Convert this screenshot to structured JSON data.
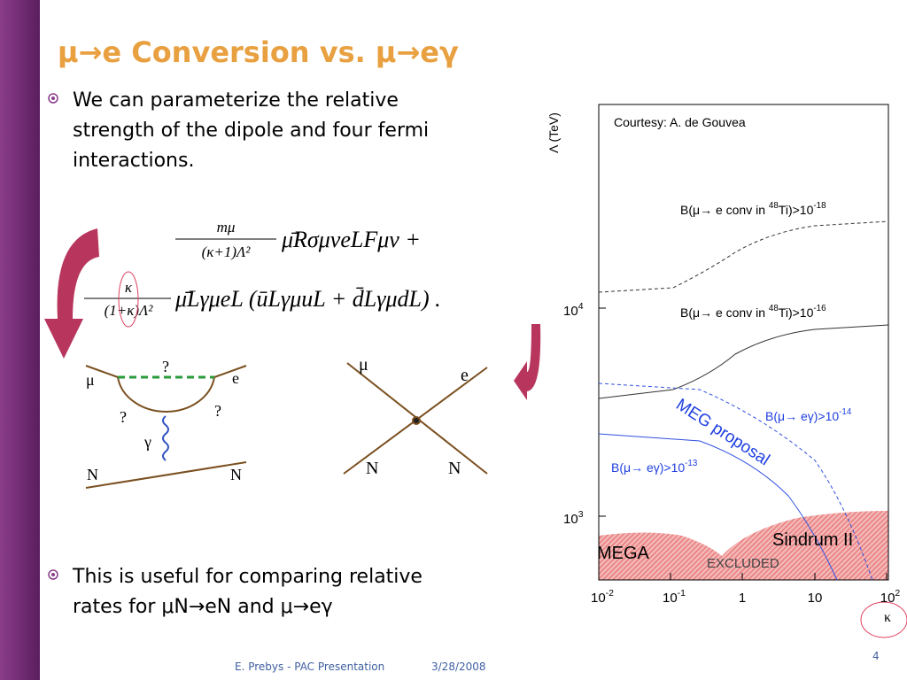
{
  "title": "μ→e Conversion vs. μ→eγ",
  "bullets": [
    {
      "lines": [
        "We can parameterize the relative",
        "strength of the dipole and four fermi",
        "interactions."
      ]
    },
    {
      "lines": [
        "This is useful for comparing relative",
        "rates for μN→eN and μ→eγ"
      ]
    }
  ],
  "equation": {
    "line1": {
      "num": "mμ",
      "den": "(κ+1)Λ²",
      "rest": "μ̄RσμνeLFμν +"
    },
    "line2": {
      "num": "κ",
      "den": "(1+κ)Λ²",
      "rest": "μ̄LγμeL (ūLγμuL + d̄LγμdL) ."
    }
  },
  "diagram_left": {
    "labels": [
      "?",
      "μ",
      "e",
      "?",
      "?",
      "γ",
      "N",
      "N"
    ]
  },
  "diagram_right": {
    "labels": [
      "μ",
      "e",
      "N",
      "N"
    ]
  },
  "plot": {
    "y_label": "Λ (TeV)",
    "x_label": "κ",
    "courtesy": "Courtesy: A. de Gouvea",
    "y_ticks": [
      [
        "10",
        "4"
      ],
      [
        "10",
        "3"
      ]
    ],
    "x_ticks": [
      [
        "10",
        "-2"
      ],
      [
        "10",
        "-1"
      ],
      [
        "1"
      ],
      [
        "10"
      ],
      [
        "10",
        "2"
      ]
    ],
    "curve_labels": [
      [
        "B(μ→ e conv in ",
        "48",
        "Ti)>10",
        "-18"
      ],
      [
        "B(μ→ e conv in ",
        "48",
        "Ti)>10",
        "-16"
      ],
      [
        "B(μ→ eγ)>10",
        "-14"
      ],
      [
        "B(μ→ eγ)>10",
        "-13"
      ]
    ],
    "meg": "MEG proposal",
    "sindrum": "Sindrum II",
    "mega": "MEGA",
    "excluded": "EXCLUDED"
  },
  "footer": {
    "author": "E. Prebys - PAC Presentation",
    "date": "3/28/2008",
    "page": "4"
  }
}
